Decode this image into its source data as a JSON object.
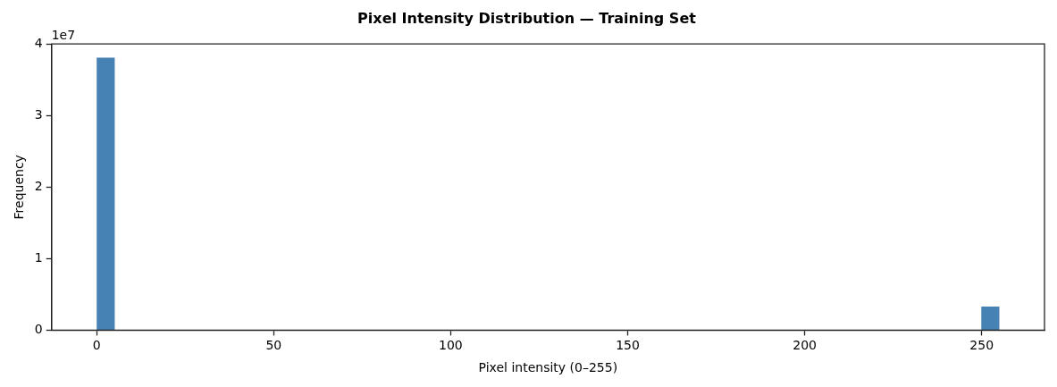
{
  "chart_data": {
    "type": "histogram",
    "title": "Pixel Intensity Distribution — Training Set",
    "xlabel": "Pixel intensity (0–255)",
    "ylabel": "Frequency",
    "annotations": [
      "1e7"
    ],
    "bins": [
      0,
      5.1,
      10.2,
      15.3,
      20.4,
      25.5,
      30.6,
      35.7,
      40.8,
      45.9,
      51,
      56.1,
      61.2,
      66.3,
      71.4,
      76.5,
      81.6,
      86.7,
      91.8,
      96.9,
      102,
      107.1,
      112.2,
      117.3,
      122.4,
      127.5,
      132.6,
      137.7,
      142.8,
      147.9,
      153,
      158.1,
      163.2,
      168.3,
      173.4,
      178.5,
      183.6,
      188.7,
      193.8,
      198.9,
      204,
      209.1,
      214.2,
      219.3,
      224.4,
      229.5,
      234.6,
      239.7,
      244.8,
      249.9,
      255
    ],
    "values": [
      3.81,
      0,
      0,
      0,
      0,
      0,
      0,
      0,
      0,
      0,
      0,
      0,
      0,
      0,
      0,
      0,
      0,
      0,
      0,
      0,
      0,
      0,
      0,
      0,
      0,
      0,
      0,
      0,
      0,
      0,
      0,
      0,
      0,
      0,
      0,
      0,
      0,
      0,
      0,
      0,
      0,
      0,
      0,
      0,
      0,
      0,
      0,
      0,
      0,
      0.33
    ],
    "color": "#4682b4",
    "xlim": [
      -12.75,
      267.75
    ],
    "xticks": [
      0,
      50,
      100,
      150,
      200,
      250
    ],
    "ylim": [
      0,
      4
    ],
    "yticks": [
      0,
      1,
      2,
      3,
      4
    ],
    "grid": false,
    "legend": false
  }
}
